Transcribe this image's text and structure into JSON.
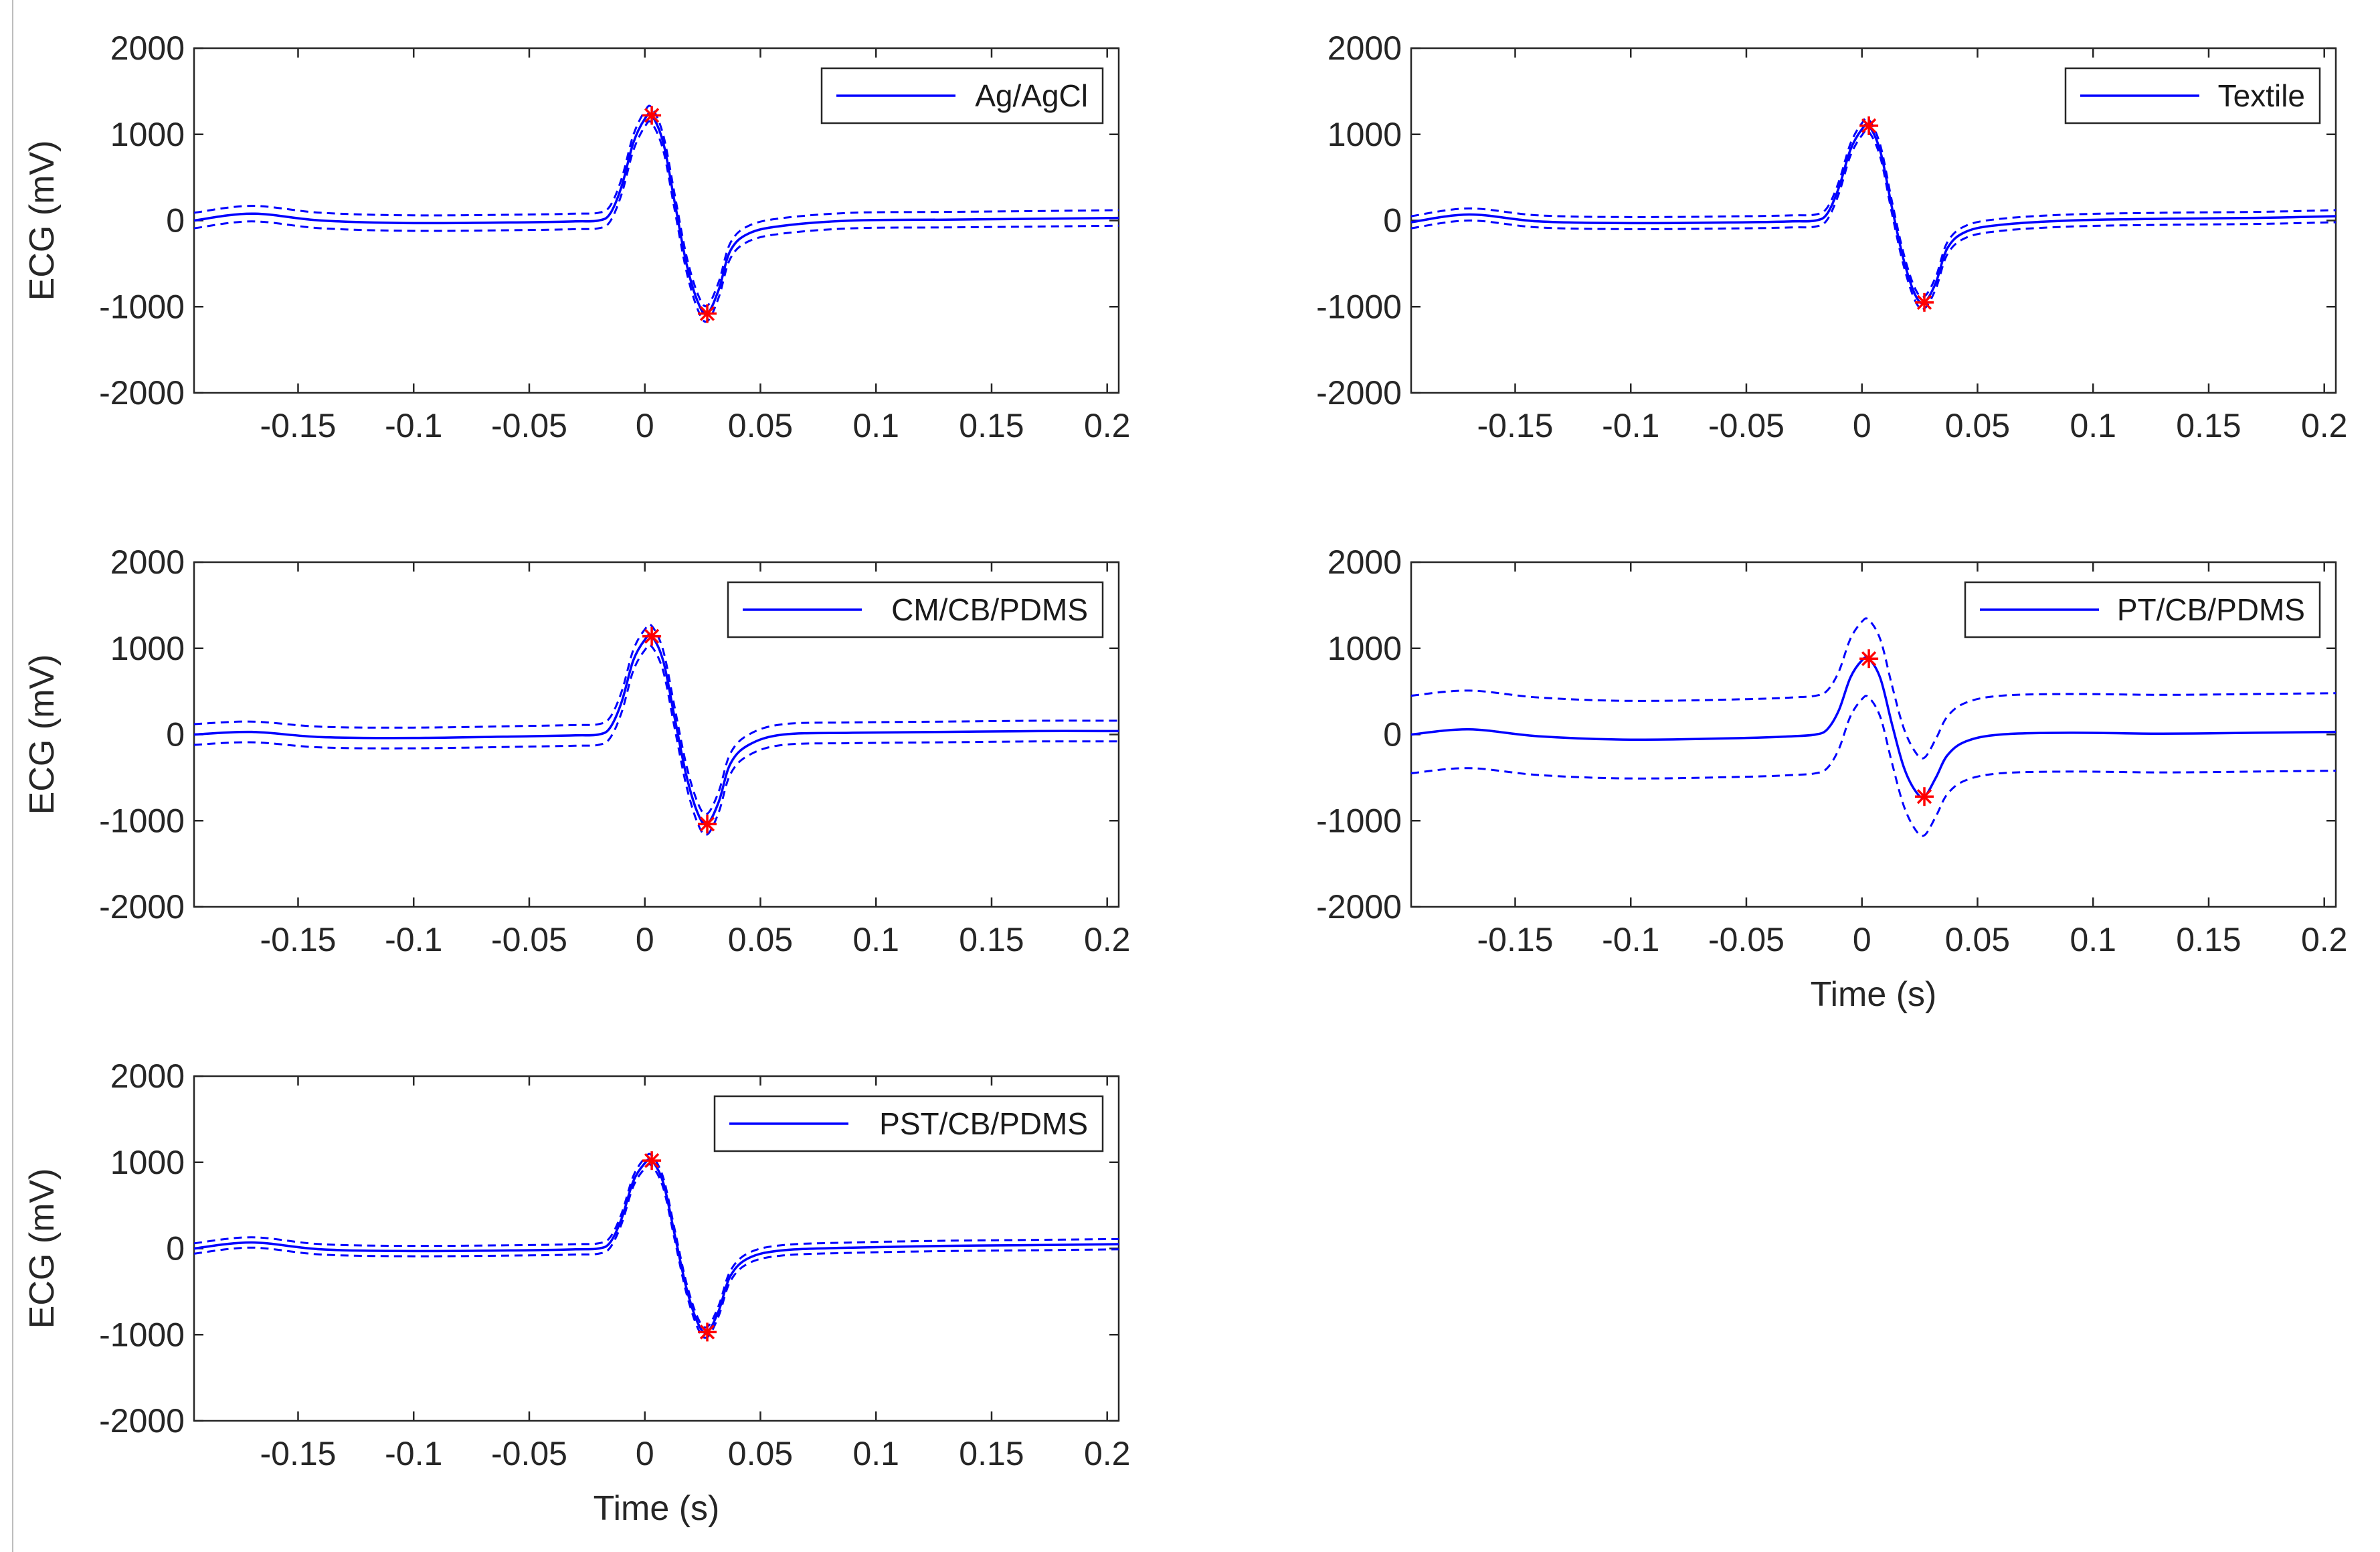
{
  "chart_data": [
    {
      "type": "line",
      "label": "Ag/AgCl",
      "xlabel": "",
      "ylabel": "ECG (mV)",
      "xlim": [
        -0.195,
        0.205
      ],
      "ylim": [
        -2000,
        2000
      ],
      "xticks": [
        -0.15,
        -0.1,
        -0.05,
        0,
        0.05,
        0.1,
        0.15,
        0.2
      ],
      "xtick_labels": [
        "-0.15",
        "-0.1",
        "-0.05",
        "0",
        "0.05",
        "0.1",
        "0.15",
        "0.2"
      ],
      "yticks": [
        -2000,
        -1000,
        0,
        1000,
        2000
      ],
      "ytick_labels": [
        "-2000",
        "-1000",
        "0",
        "1000",
        "2000"
      ],
      "legend": "Ag/AgCl",
      "legend_position": "top-right",
      "peaks": [
        {
          "x": 0.003,
          "y": 1220
        },
        {
          "x": 0.027,
          "y": -1080
        }
      ],
      "band": 90,
      "series": [
        {
          "name": "mean",
          "x": [
            -0.195,
            -0.17,
            -0.14,
            -0.1,
            -0.05,
            -0.03,
            -0.02,
            -0.015,
            -0.01,
            -0.005,
            0,
            0.003,
            0.008,
            0.013,
            0.018,
            0.023,
            0.027,
            0.032,
            0.037,
            0.045,
            0.06,
            0.09,
            0.13,
            0.17,
            0.205
          ],
          "y": [
            0,
            80,
            0,
            -30,
            -20,
            -10,
            0,
            80,
            400,
            900,
            1180,
            1220,
            900,
            200,
            -500,
            -950,
            -1080,
            -800,
            -350,
            -150,
            -60,
            0,
            10,
            20,
            30
          ]
        }
      ]
    },
    {
      "type": "line",
      "label": "Textile",
      "xlabel": "",
      "ylabel": "",
      "xlim": [
        -0.195,
        0.205
      ],
      "ylim": [
        -2000,
        2000
      ],
      "xticks": [
        -0.15,
        -0.1,
        -0.05,
        0,
        0.05,
        0.1,
        0.15,
        0.2
      ],
      "xtick_labels": [
        "-0.15",
        "-0.1",
        "-0.05",
        "0",
        "0.05",
        "0.1",
        "0.15",
        "0.2"
      ],
      "yticks": [
        -2000,
        -1000,
        0,
        1000,
        2000
      ],
      "ytick_labels": [
        "-2000",
        "-1000",
        "0",
        "1000",
        "2000"
      ],
      "legend": "Textile",
      "legend_position": "top-right",
      "peaks": [
        {
          "x": 0.003,
          "y": 1100
        },
        {
          "x": 0.027,
          "y": -950
        }
      ],
      "band": 70,
      "series": [
        {
          "name": "mean",
          "x": [
            -0.195,
            -0.17,
            -0.14,
            -0.1,
            -0.05,
            -0.03,
            -0.02,
            -0.015,
            -0.01,
            -0.005,
            0,
            0.003,
            0.008,
            0.013,
            0.018,
            0.023,
            0.027,
            0.032,
            0.037,
            0.045,
            0.06,
            0.09,
            0.13,
            0.17,
            0.205
          ],
          "y": [
            -20,
            70,
            -10,
            -30,
            -20,
            -10,
            0,
            80,
            380,
            820,
            1060,
            1100,
            800,
            150,
            -450,
            -860,
            -950,
            -720,
            -320,
            -130,
            -50,
            0,
            20,
            30,
            50
          ]
        }
      ]
    },
    {
      "type": "line",
      "label": "CM/CB/PDMS",
      "xlabel": "",
      "ylabel": "ECG (mV)",
      "xlim": [
        -0.195,
        0.205
      ],
      "ylim": [
        -2000,
        2000
      ],
      "xticks": [
        -0.15,
        -0.1,
        -0.05,
        0,
        0.05,
        0.1,
        0.15,
        0.2
      ],
      "xtick_labels": [
        "-0.15",
        "-0.1",
        "-0.05",
        "0",
        "0.05",
        "0.1",
        "0.15",
        "0.2"
      ],
      "yticks": [
        -2000,
        -1000,
        0,
        1000,
        2000
      ],
      "ytick_labels": [
        "-2000",
        "-1000",
        "0",
        "1000",
        "2000"
      ],
      "legend": "CM/CB/PDMS",
      "legend_position": "top-right",
      "peaks": [
        {
          "x": 0.003,
          "y": 1140
        },
        {
          "x": 0.027,
          "y": -1040
        }
      ],
      "band": 120,
      "series": [
        {
          "name": "mean",
          "x": [
            -0.195,
            -0.17,
            -0.14,
            -0.1,
            -0.05,
            -0.03,
            -0.02,
            -0.015,
            -0.01,
            -0.005,
            0,
            0.003,
            0.008,
            0.013,
            0.018,
            0.023,
            0.027,
            0.032,
            0.037,
            0.045,
            0.06,
            0.09,
            0.13,
            0.17,
            0.205
          ],
          "y": [
            0,
            30,
            -30,
            -40,
            -20,
            -10,
            0,
            80,
            380,
            860,
            1100,
            1140,
            850,
            180,
            -480,
            -920,
            -1040,
            -780,
            -340,
            -120,
            0,
            20,
            30,
            40,
            40
          ]
        }
      ]
    },
    {
      "type": "line",
      "label": "PT/CB/PDMS",
      "xlabel": "Time (s)",
      "ylabel": "",
      "xlim": [
        -0.195,
        0.205
      ],
      "ylim": [
        -2000,
        2000
      ],
      "xticks": [
        -0.15,
        -0.1,
        -0.05,
        0,
        0.05,
        0.1,
        0.15,
        0.2
      ],
      "xtick_labels": [
        "-0.15",
        "-0.1",
        "-0.05",
        "0",
        "0.05",
        "0.1",
        "0.15",
        "0.2"
      ],
      "yticks": [
        -2000,
        -1000,
        0,
        1000,
        2000
      ],
      "ytick_labels": [
        "-2000",
        "-1000",
        "0",
        "1000",
        "2000"
      ],
      "legend": "PT/CB/PDMS",
      "legend_position": "top-right",
      "peaks": [
        {
          "x": 0.003,
          "y": 880
        },
        {
          "x": 0.027,
          "y": -720
        }
      ],
      "band": 450,
      "series": [
        {
          "name": "mean",
          "x": [
            -0.195,
            -0.17,
            -0.14,
            -0.1,
            -0.05,
            -0.03,
            -0.02,
            -0.015,
            -0.01,
            -0.005,
            0,
            0.003,
            0.008,
            0.013,
            0.018,
            0.023,
            0.027,
            0.032,
            0.037,
            0.045,
            0.06,
            0.09,
            0.13,
            0.17,
            0.205
          ],
          "y": [
            0,
            60,
            -20,
            -60,
            -40,
            -20,
            0,
            60,
            280,
            660,
            860,
            880,
            650,
            120,
            -370,
            -650,
            -720,
            -500,
            -240,
            -80,
            0,
            20,
            10,
            20,
            30
          ]
        }
      ]
    },
    {
      "type": "line",
      "label": "PST/CB/PDMS",
      "xlabel": "Time (s)",
      "ylabel": "ECG (mV)",
      "xlim": [
        -0.195,
        0.205
      ],
      "ylim": [
        -2000,
        2000
      ],
      "xticks": [
        -0.15,
        -0.1,
        -0.05,
        0,
        0.05,
        0.1,
        0.15,
        0.2
      ],
      "xtick_labels": [
        "-0.15",
        "-0.1",
        "-0.05",
        "0",
        "0.05",
        "0.1",
        "0.15",
        "0.2"
      ],
      "yticks": [
        -2000,
        -1000,
        0,
        1000,
        2000
      ],
      "ytick_labels": [
        "-2000",
        "-1000",
        "0",
        "1000",
        "2000"
      ],
      "legend": "PST/CB/PDMS",
      "legend_position": "top-right",
      "peaks": [
        {
          "x": 0.003,
          "y": 1020
        },
        {
          "x": 0.027,
          "y": -970
        }
      ],
      "band": 60,
      "series": [
        {
          "name": "mean",
          "x": [
            -0.195,
            -0.17,
            -0.14,
            -0.1,
            -0.05,
            -0.03,
            -0.02,
            -0.015,
            -0.01,
            -0.005,
            0,
            0.003,
            0.008,
            0.013,
            0.018,
            0.023,
            0.027,
            0.032,
            0.037,
            0.045,
            0.06,
            0.09,
            0.13,
            0.17,
            0.205
          ],
          "y": [
            0,
            70,
            -10,
            -30,
            -20,
            -10,
            0,
            70,
            350,
            780,
            990,
            1020,
            760,
            150,
            -460,
            -870,
            -970,
            -720,
            -320,
            -110,
            -20,
            10,
            30,
            40,
            50
          ]
        }
      ]
    }
  ],
  "colors": {
    "mean": "#0000ff",
    "band": "#0000ff",
    "peak": "#ff0000",
    "axis": "#262626"
  }
}
